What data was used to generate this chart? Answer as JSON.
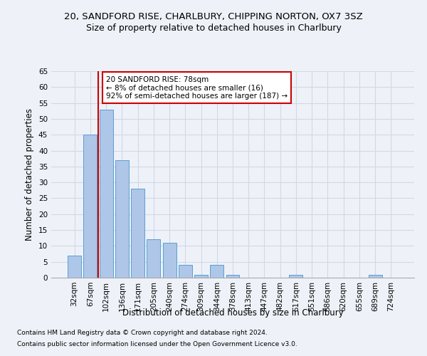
{
  "title1": "20, SANDFORD RISE, CHARLBURY, CHIPPING NORTON, OX7 3SZ",
  "title2": "Size of property relative to detached houses in Charlbury",
  "xlabel": "Distribution of detached houses by size in Charlbury",
  "ylabel": "Number of detached properties",
  "footnote1": "Contains HM Land Registry data © Crown copyright and database right 2024.",
  "footnote2": "Contains public sector information licensed under the Open Government Licence v3.0.",
  "categories": [
    "32sqm",
    "67sqm",
    "102sqm",
    "136sqm",
    "171sqm",
    "205sqm",
    "240sqm",
    "274sqm",
    "309sqm",
    "344sqm",
    "378sqm",
    "413sqm",
    "447sqm",
    "482sqm",
    "517sqm",
    "551sqm",
    "586sqm",
    "620sqm",
    "655sqm",
    "689sqm",
    "724sqm"
  ],
  "values": [
    7,
    45,
    53,
    37,
    28,
    12,
    11,
    4,
    1,
    4,
    1,
    0,
    0,
    0,
    1,
    0,
    0,
    0,
    0,
    1,
    0
  ],
  "bar_color": "#aec6e8",
  "bar_edge_color": "#5a9fd4",
  "grid_color": "#d0d8e8",
  "annotation_line1": "20 SANDFORD RISE: 78sqm",
  "annotation_line2": "← 8% of detached houses are smaller (16)",
  "annotation_line3": "92% of semi-detached houses are larger (187) →",
  "annotation_box_color": "#ffffff",
  "annotation_box_edge_color": "#cc0000",
  "vline_color": "#cc0000",
  "ylim": [
    0,
    65
  ],
  "yticks": [
    0,
    5,
    10,
    15,
    20,
    25,
    30,
    35,
    40,
    45,
    50,
    55,
    60,
    65
  ],
  "background_color": "#eef2f8",
  "title1_fontsize": 9.5,
  "title2_fontsize": 9.0,
  "ylabel_fontsize": 8.5,
  "xlabel_fontsize": 8.5,
  "footnote_fontsize": 6.5,
  "tick_fontsize": 7.5,
  "annotation_fontsize": 7.5
}
